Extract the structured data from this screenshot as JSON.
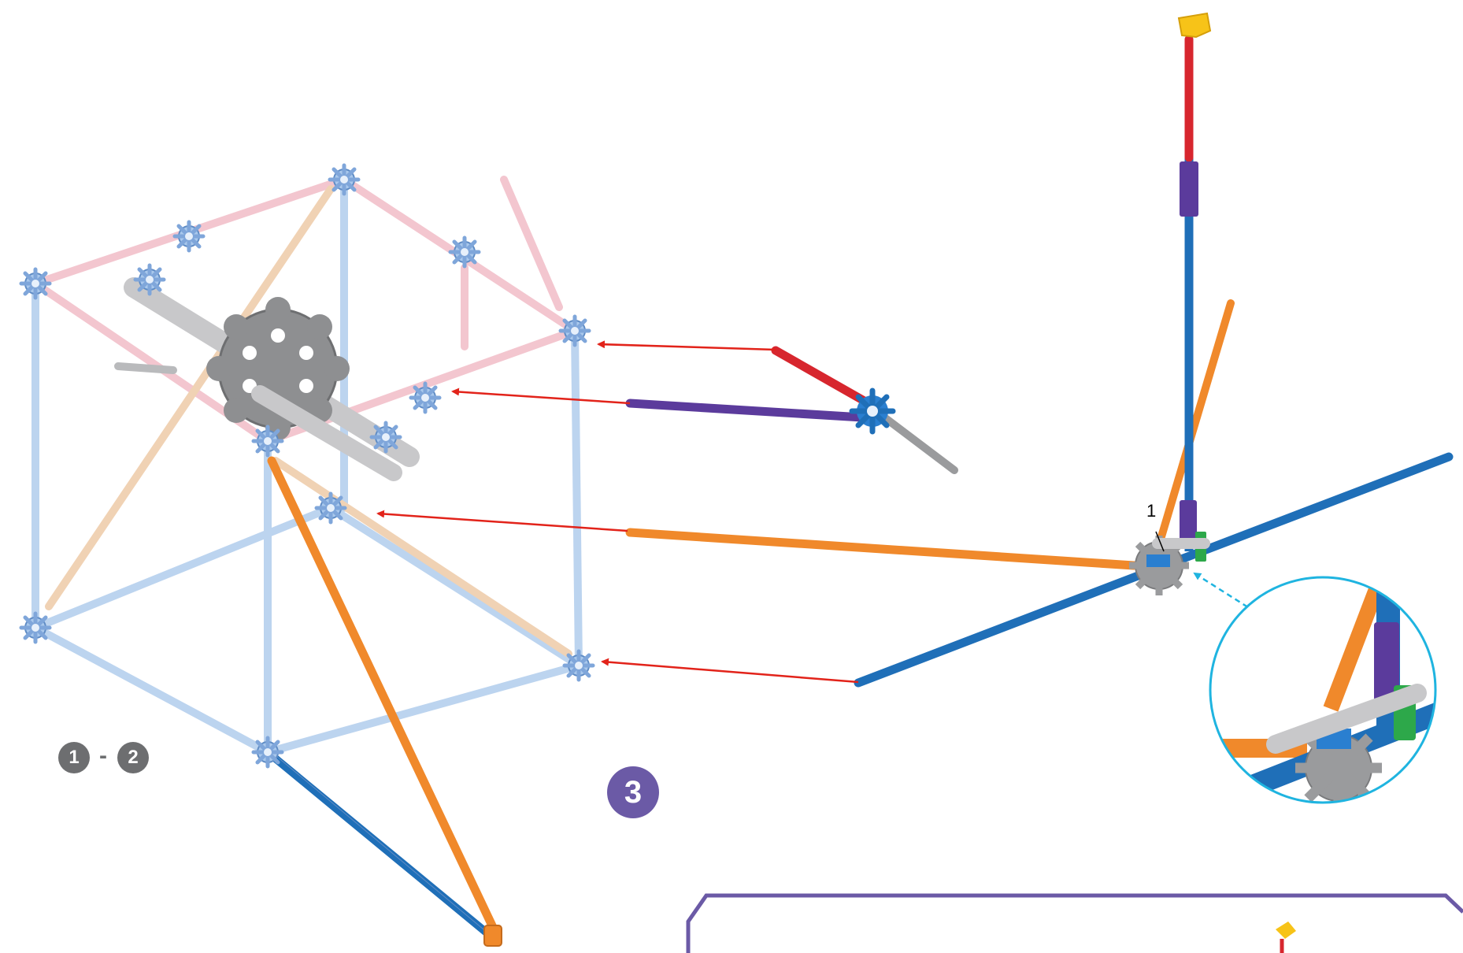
{
  "steps": {
    "previous_from": "1",
    "separator": "-",
    "previous_to": "2",
    "current": "3"
  },
  "callout": {
    "part_number": "1"
  },
  "colors": {
    "red_rod": "#d7262e",
    "purple_rod": "#5b3b9c",
    "orange_rod": "#f0892b",
    "blue_rod": "#1f6fb8",
    "grey_rod": "#9a9b9d",
    "frame_light_blue": "#bcd4ef",
    "frame_pink": "#f3c6cf",
    "frame_tan": "#f0d2b4",
    "yellow_connector": "#f7c318",
    "green_clip": "#2da84a",
    "step_badge": "#6b5aa6",
    "prev_badge": "#6d6e70",
    "arrow_red": "#e2231a",
    "zoom_cyan": "#1fb4e0",
    "panel_border": "#6b5aa6"
  },
  "icons": {
    "gear": "gear-wheel-icon",
    "connector": "star-connector-icon"
  }
}
